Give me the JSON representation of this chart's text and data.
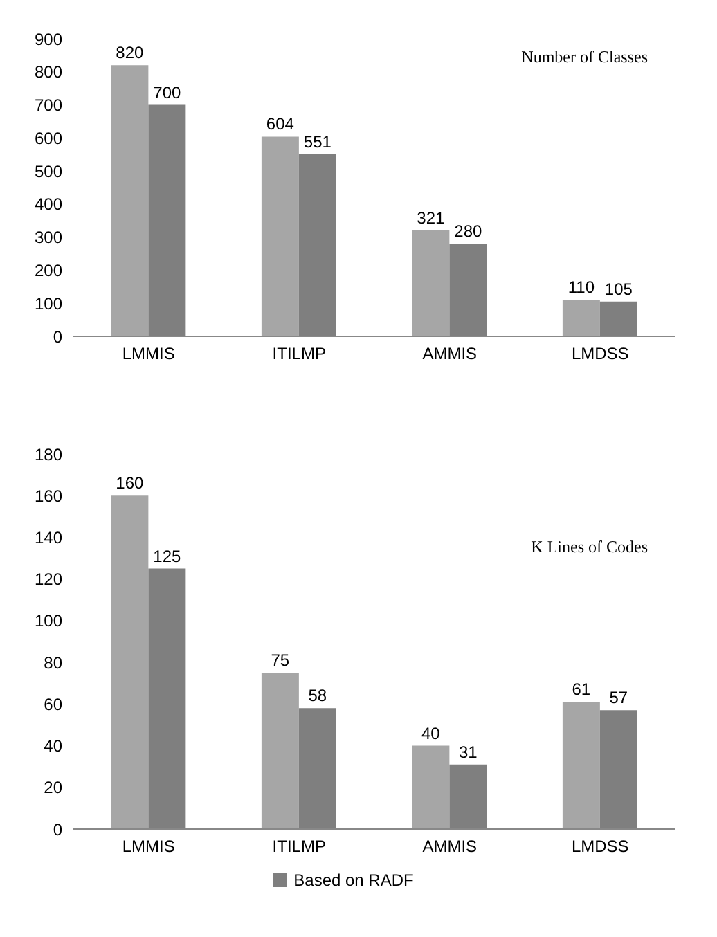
{
  "chart_data": [
    {
      "type": "bar",
      "title": "Number of Classes",
      "categories": [
        "LMMIS",
        "ITILMP",
        "AMMIS",
        "LMDSS"
      ],
      "series": [
        {
          "color": "#a6a6a6",
          "values": [
            820,
            604,
            321,
            110
          ]
        },
        {
          "color": "#7f7f7f",
          "values": [
            700,
            551,
            280,
            105
          ]
        }
      ],
      "ylim": [
        0,
        900
      ],
      "yticks": [
        0,
        100,
        200,
        300,
        400,
        500,
        600,
        700,
        800,
        900
      ],
      "data_labels": true,
      "grid": false
    },
    {
      "type": "bar",
      "title": "K Lines of Codes",
      "categories": [
        "LMMIS",
        "ITILMP",
        "AMMIS",
        "LMDSS"
      ],
      "series": [
        {
          "color": "#a6a6a6",
          "values": [
            160,
            75,
            40,
            61
          ]
        },
        {
          "name": "Based on RADF",
          "color": "#7f7f7f",
          "values": [
            125,
            58,
            31,
            57
          ]
        }
      ],
      "ylim": [
        0,
        180
      ],
      "yticks": [
        0,
        20,
        40,
        60,
        80,
        100,
        120,
        140,
        160,
        180
      ],
      "data_labels": true,
      "grid": false,
      "legend": "bottom"
    }
  ]
}
